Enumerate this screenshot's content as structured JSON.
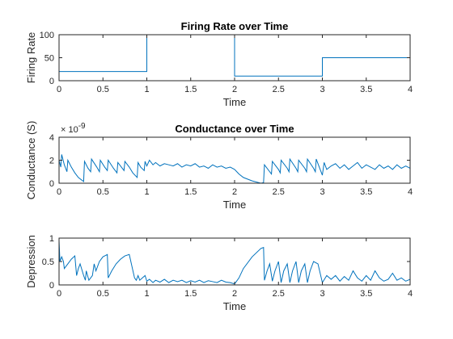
{
  "figure": {
    "background": "#ffffff",
    "line_color": "#0072BD",
    "axis_color": "#262626"
  },
  "chart_data": [
    {
      "type": "line",
      "title": "Firing Rate over Time",
      "xlabel": "Time",
      "ylabel": "Firing Rate",
      "xlim": [
        0,
        4
      ],
      "ylim": [
        0,
        100
      ],
      "xticks": [
        0,
        0.5,
        1,
        1.5,
        2,
        2.5,
        3,
        3.5,
        4
      ],
      "xtick_labels": [
        "0",
        "0.5",
        "1",
        "1.5",
        "2",
        "2.5",
        "3",
        "3.5",
        "4"
      ],
      "yticks": [
        0,
        50,
        100
      ],
      "ytick_labels": [
        "0",
        "50",
        "100"
      ],
      "exponent_label": "",
      "grid": false,
      "step": true,
      "series": [
        {
          "x": [
            0,
            1,
            1,
            2,
            2,
            3,
            3,
            4,
            4
          ],
          "y": [
            20,
            20,
            100,
            100,
            10,
            10,
            50,
            50,
            0
          ]
        }
      ]
    },
    {
      "type": "line",
      "title": "Conductance over Time",
      "xlabel": "Time",
      "ylabel": "Conductance (S)",
      "xlim": [
        0,
        4
      ],
      "ylim": [
        0,
        4
      ],
      "xticks": [
        0,
        0.5,
        1,
        1.5,
        2,
        2.5,
        3,
        3.5,
        4
      ],
      "xtick_labels": [
        "0",
        "0.5",
        "1",
        "1.5",
        "2",
        "2.5",
        "3",
        "3.5",
        "4"
      ],
      "yticks": [
        0,
        2,
        4
      ],
      "ytick_labels": [
        "0",
        "2",
        "4"
      ],
      "exponent_label": "× 10",
      "exponent_power": "-9",
      "grid": false,
      "step": false,
      "series": [
        {
          "x": [
            0,
            0.02,
            0.03,
            0.06,
            0.09,
            0.1,
            0.14,
            0.18,
            0.22,
            0.28,
            0.29,
            0.33,
            0.36,
            0.37,
            0.43,
            0.46,
            0.47,
            0.52,
            0.55,
            0.56,
            0.62,
            0.66,
            0.67,
            0.72,
            0.74,
            0.75,
            0.8,
            0.84,
            0.89,
            0.9,
            0.93,
            0.97,
            0.98,
            1.0,
            1.03,
            1.07,
            1.1,
            1.15,
            1.2,
            1.25,
            1.3,
            1.35,
            1.4,
            1.45,
            1.5,
            1.55,
            1.6,
            1.65,
            1.7,
            1.75,
            1.8,
            1.85,
            1.9,
            1.95,
            2.0,
            2.05,
            2.1,
            2.2,
            2.3,
            2.33,
            2.34,
            2.4,
            2.42,
            2.43,
            2.5,
            2.52,
            2.53,
            2.6,
            2.62,
            2.63,
            2.7,
            2.72,
            2.73,
            2.8,
            2.82,
            2.83,
            2.9,
            2.92,
            2.93,
            3.0,
            3.02,
            3.05,
            3.1,
            3.15,
            3.2,
            3.25,
            3.3,
            3.35,
            3.4,
            3.45,
            3.5,
            3.55,
            3.6,
            3.65,
            3.7,
            3.75,
            3.8,
            3.85,
            3.9,
            3.95,
            4.0
          ],
          "y": [
            2.0,
            1.4,
            2.5,
            1.6,
            1.0,
            2.0,
            1.4,
            0.9,
            0.5,
            0.15,
            1.9,
            1.3,
            1.0,
            2.1,
            1.4,
            1.0,
            2.0,
            1.4,
            1.1,
            2.0,
            1.3,
            0.9,
            1.8,
            1.3,
            1.1,
            1.9,
            1.4,
            0.9,
            0.5,
            1.8,
            1.4,
            1.1,
            1.9,
            1.5,
            2.0,
            1.6,
            1.8,
            1.5,
            1.7,
            1.6,
            1.5,
            1.7,
            1.4,
            1.6,
            1.5,
            1.7,
            1.4,
            1.5,
            1.3,
            1.6,
            1.4,
            1.5,
            1.3,
            1.4,
            1.2,
            0.8,
            0.5,
            0.2,
            0.0,
            0.05,
            1.6,
            1.0,
            0.8,
            1.9,
            1.2,
            0.9,
            2.0,
            1.3,
            1.0,
            2.1,
            1.3,
            1.0,
            2.0,
            1.3,
            1.0,
            2.1,
            1.3,
            1.0,
            2.1,
            0.7,
            1.8,
            1.2,
            1.5,
            1.7,
            1.3,
            1.6,
            1.2,
            1.5,
            1.8,
            1.3,
            1.6,
            1.4,
            1.2,
            1.6,
            1.3,
            1.5,
            1.2,
            1.6,
            1.3,
            1.5,
            1.3
          ]
        }
      ]
    },
    {
      "type": "line",
      "title": "",
      "xlabel": "Time",
      "ylabel": "Depression",
      "xlim": [
        0,
        4
      ],
      "ylim": [
        0,
        1
      ],
      "xticks": [
        0,
        0.5,
        1,
        1.5,
        2,
        2.5,
        3,
        3.5,
        4
      ],
      "xtick_labels": [
        "0",
        "0.5",
        "1",
        "1.5",
        "2",
        "2.5",
        "3",
        "3.5",
        "4"
      ],
      "yticks": [
        0,
        0.5,
        1
      ],
      "ytick_labels": [
        "0",
        "0.5",
        "1"
      ],
      "exponent_label": "",
      "grid": false,
      "step": false,
      "series": [
        {
          "x": [
            0,
            0.01,
            0.03,
            0.05,
            0.06,
            0.1,
            0.14,
            0.18,
            0.2,
            0.22,
            0.24,
            0.28,
            0.3,
            0.31,
            0.34,
            0.38,
            0.4,
            0.42,
            0.46,
            0.5,
            0.55,
            0.56,
            0.6,
            0.65,
            0.7,
            0.75,
            0.8,
            0.86,
            0.88,
            0.9,
            0.92,
            0.95,
            0.98,
            1.0,
            1.03,
            1.07,
            1.1,
            1.15,
            1.2,
            1.25,
            1.3,
            1.35,
            1.4,
            1.45,
            1.5,
            1.55,
            1.6,
            1.65,
            1.7,
            1.75,
            1.8,
            1.85,
            1.9,
            1.95,
            2.0,
            2.05,
            2.1,
            2.2,
            2.3,
            2.33,
            2.34,
            2.37,
            2.4,
            2.43,
            2.46,
            2.5,
            2.53,
            2.56,
            2.6,
            2.63,
            2.66,
            2.7,
            2.73,
            2.76,
            2.8,
            2.83,
            2.86,
            2.9,
            2.95,
            3.0,
            3.05,
            3.1,
            3.15,
            3.2,
            3.25,
            3.3,
            3.35,
            3.4,
            3.45,
            3.5,
            3.55,
            3.6,
            3.65,
            3.7,
            3.75,
            3.8,
            3.85,
            3.9,
            3.95,
            4.0
          ],
          "y": [
            0.95,
            0.5,
            0.6,
            0.5,
            0.35,
            0.45,
            0.55,
            0.62,
            0.2,
            0.35,
            0.45,
            0.2,
            0.1,
            0.3,
            0.1,
            0.2,
            0.45,
            0.3,
            0.5,
            0.6,
            0.65,
            0.15,
            0.3,
            0.45,
            0.55,
            0.62,
            0.65,
            0.15,
            0.1,
            0.2,
            0.1,
            0.15,
            0.2,
            0.08,
            0.12,
            0.05,
            0.1,
            0.06,
            0.12,
            0.05,
            0.1,
            0.07,
            0.1,
            0.05,
            0.09,
            0.06,
            0.1,
            0.05,
            0.09,
            0.07,
            0.05,
            0.1,
            0.06,
            0.05,
            0.02,
            0.15,
            0.35,
            0.6,
            0.78,
            0.8,
            0.1,
            0.3,
            0.45,
            0.08,
            0.3,
            0.5,
            0.05,
            0.3,
            0.45,
            0.05,
            0.3,
            0.5,
            0.05,
            0.3,
            0.45,
            0.05,
            0.3,
            0.5,
            0.45,
            0.05,
            0.2,
            0.12,
            0.2,
            0.08,
            0.18,
            0.1,
            0.3,
            0.15,
            0.08,
            0.2,
            0.1,
            0.3,
            0.15,
            0.08,
            0.12,
            0.25,
            0.1,
            0.15,
            0.08,
            0.12
          ]
        }
      ]
    }
  ]
}
